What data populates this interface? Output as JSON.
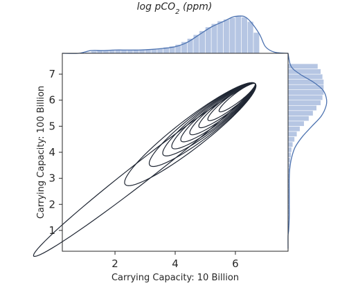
{
  "chart_data": {
    "type": "kde-joint",
    "title": "log pCO",
    "title_subscript": "2",
    "title_suffix": " (ppm)",
    "xlabel": "Carrying Capacity: 10 Billion",
    "ylabel": "Carrying Capacity: 100 Billion",
    "xlim": [
      0.25,
      7.75
    ],
    "ylim": [
      0.2,
      7.8
    ],
    "xticks": [
      "2",
      "4",
      "6"
    ],
    "xtick_values": [
      2,
      4,
      6
    ],
    "yticks": [
      "1",
      "2",
      "3",
      "4",
      "5",
      "6",
      "7"
    ],
    "ytick_values": [
      1,
      2,
      3,
      4,
      5,
      6,
      7
    ],
    "grid": false,
    "colors": {
      "marginal": "#4c72b0",
      "marginal_fill": "#b6c6e3",
      "contour": "#1f2633"
    },
    "density_ellipses": {
      "center": [
        5.95,
        6.0
      ],
      "direction_angle_deg": 42,
      "major_semi_axis": [
        4.95,
        2.9,
        2.35,
        2.05,
        1.85,
        1.65,
        1.45,
        1.25,
        1.05,
        0.8
      ],
      "minor_semi_axis": [
        0.36,
        0.52,
        0.46,
        0.41,
        0.37,
        0.33,
        0.29,
        0.25,
        0.21,
        0.16
      ]
    },
    "x_marginal_hist": {
      "bin_start": 1.0,
      "bin_width": 0.2,
      "density": [
        0.02,
        0.04,
        0.05,
        0.05,
        0.06,
        0.06,
        0.06,
        0.06,
        0.06,
        0.07,
        0.07,
        0.08,
        0.09,
        0.11,
        0.13,
        0.16,
        0.21,
        0.27,
        0.34,
        0.41,
        0.48,
        0.54,
        0.59,
        0.62,
        0.65,
        0.68,
        0.66,
        0.58,
        0.38
      ]
    },
    "x_marginal_kde": {
      "x": [
        0.25,
        0.8,
        1.2,
        1.6,
        2.0,
        2.4,
        2.8,
        3.2,
        3.6,
        4.0,
        4.4,
        4.8,
        5.2,
        5.6,
        5.9,
        6.1,
        6.3,
        6.5,
        6.8,
        7.0,
        7.3,
        7.75
      ],
      "density": [
        0.0,
        0.0,
        0.05,
        0.05,
        0.06,
        0.06,
        0.06,
        0.07,
        0.09,
        0.12,
        0.2,
        0.34,
        0.48,
        0.58,
        0.66,
        0.68,
        0.67,
        0.58,
        0.35,
        0.12,
        0.02,
        0.0
      ]
    },
    "y_marginal_hist": {
      "bin_start": 1.0,
      "bin_width": 0.2,
      "density": [
        0.01,
        0.02,
        0.02,
        0.02,
        0.02,
        0.02,
        0.02,
        0.02,
        0.02,
        0.02,
        0.03,
        0.03,
        0.03,
        0.04,
        0.05,
        0.06,
        0.08,
        0.11,
        0.15,
        0.2,
        0.27,
        0.35,
        0.42,
        0.48,
        0.55,
        0.58,
        0.6,
        0.6,
        0.6,
        0.58,
        0.55,
        0.5
      ]
    },
    "y_marginal_kde": {
      "y": [
        0.3,
        0.8,
        1.0,
        1.5,
        2.0,
        2.5,
        3.0,
        3.4,
        3.8,
        4.2,
        4.6,
        5.0,
        5.4,
        5.8,
        6.1,
        6.4,
        6.7,
        7.0,
        7.3,
        7.8
      ],
      "density": [
        0.0,
        0.0,
        0.01,
        0.02,
        0.02,
        0.02,
        0.02,
        0.03,
        0.06,
        0.12,
        0.24,
        0.4,
        0.56,
        0.64,
        0.64,
        0.58,
        0.42,
        0.2,
        0.05,
        0.0
      ]
    },
    "marginal_density_max": 0.72
  }
}
